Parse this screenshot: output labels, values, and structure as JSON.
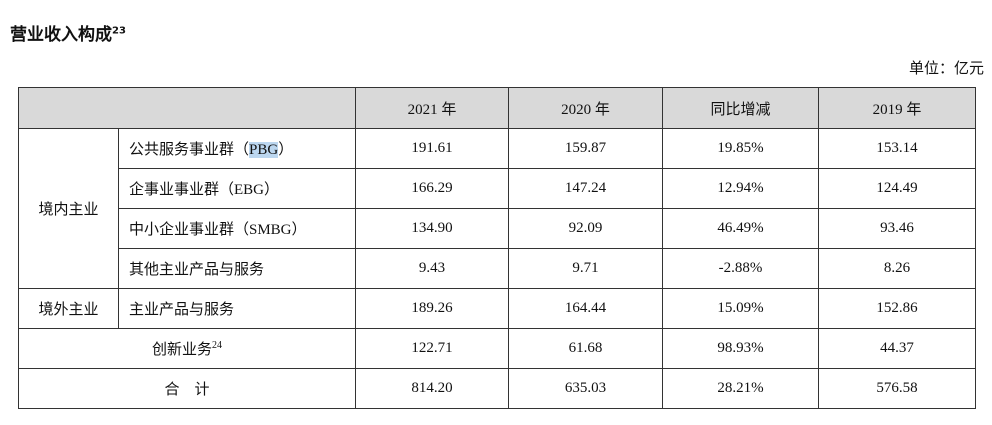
{
  "header": {
    "title": "营业收入构成",
    "title_note": "23",
    "unit": "单位：亿元"
  },
  "table": {
    "columns": [
      "2021 年",
      "2020 年",
      "同比增减",
      "2019 年"
    ],
    "groups": [
      {
        "label": "境内主业",
        "rows": [
          {
            "label": [
              "公共服务事业群（",
              "PBG",
              "）"
            ],
            "values": [
              "191.61",
              "159.87",
              "19.85%",
              "153.14"
            ]
          },
          {
            "label": [
              "企事业事业群（EBG）"
            ],
            "values": [
              "166.29",
              "147.24",
              "12.94%",
              "124.49"
            ]
          },
          {
            "label": [
              "中小企业事业群（SMBG）"
            ],
            "values": [
              "134.90",
              "92.09",
              "46.49%",
              "93.46"
            ]
          },
          {
            "label": [
              "其他主业产品与服务"
            ],
            "values": [
              "9.43",
              "9.71",
              "-2.88%",
              "8.26"
            ]
          }
        ]
      },
      {
        "label": "境外主业",
        "rows": [
          {
            "label": [
              "主业产品与服务"
            ],
            "values": [
              "189.26",
              "164.44",
              "15.09%",
              "152.86"
            ]
          }
        ]
      }
    ],
    "other_rows": [
      {
        "label": "创新业务",
        "label_note": "24",
        "values": [
          "122.71",
          "61.68",
          "98.93%",
          "44.37"
        ]
      },
      {
        "label": "合　计",
        "values": [
          "814.20",
          "635.03",
          "28.21%",
          "576.58"
        ]
      }
    ]
  }
}
